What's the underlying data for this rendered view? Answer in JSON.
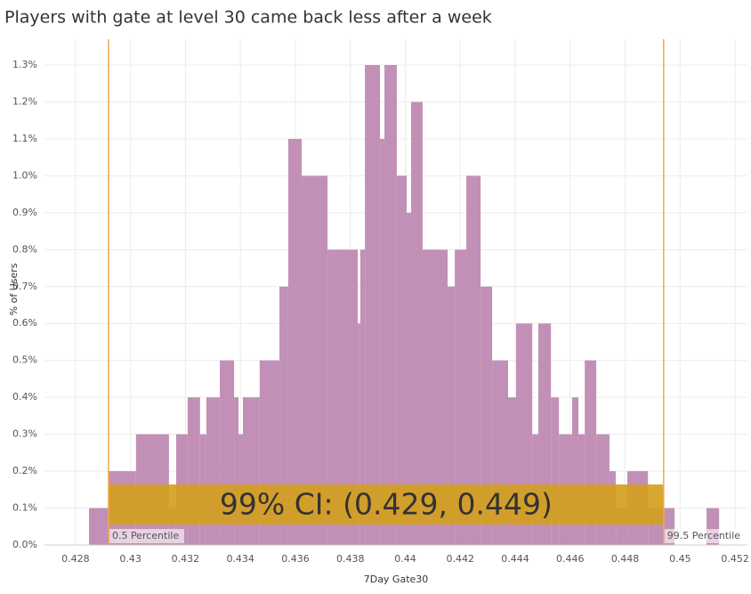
{
  "chart_data": {
    "type": "histogram",
    "title": "Players with gate at level 30 came back less after a week",
    "x_label": "7Day Gate30",
    "y_label": "% of Users",
    "color": "#c290b6",
    "bins": [
      0.42849,
      0.4292,
      0.4302,
      0.4314,
      0.43166,
      0.43208,
      0.43253,
      0.43276,
      0.43325,
      0.43377,
      0.43393,
      0.43409,
      0.4347,
      0.43542,
      0.43574,
      0.43623,
      0.43717,
      0.43827,
      0.43836,
      0.43853,
      0.43908,
      0.43924,
      0.43969,
      0.44005,
      0.44021,
      0.44063,
      0.44154,
      0.4418,
      0.44222,
      0.44274,
      0.44316,
      0.44374,
      0.44403,
      0.44462,
      0.44484,
      0.4453,
      0.44559,
      0.44607,
      0.4463,
      0.44653,
      0.44695,
      0.44743,
      0.44766,
      0.44808,
      0.44883,
      0.44944,
      0.4498,
      0.45096,
      0.45142
    ],
    "values": [
      0.1,
      0.2,
      0.3,
      0.1,
      0.3,
      0.4,
      0.3,
      0.4,
      0.5,
      0.4,
      0.3,
      0.4,
      0.5,
      0.7,
      1.1,
      1.0,
      0.8,
      0.6,
      0.8,
      1.3,
      1.1,
      1.3,
      1.0,
      0.9,
      1.2,
      0.8,
      0.7,
      0.8,
      1.0,
      0.7,
      0.5,
      0.4,
      0.6,
      0.3,
      0.6,
      0.4,
      0.3,
      0.4,
      0.3,
      0.5,
      0.3,
      0.2,
      0.1,
      0.2,
      0.1,
      0.1,
      0,
      0.1
    ],
    "xlim": [
      0.42687,
      0.45245
    ],
    "xticks": [
      0.428,
      0.43,
      0.432,
      0.434,
      0.436,
      0.438,
      0.44,
      0.442,
      0.444,
      0.446,
      0.448,
      0.45,
      0.452
    ],
    "ylim": [
      0,
      1.37
    ],
    "yticks": [
      {
        "value": 0,
        "label": "0.0%"
      },
      {
        "value": 0.1,
        "label": "0.1%"
      },
      {
        "value": 0.2,
        "label": "0.2%"
      },
      {
        "value": 0.3,
        "label": "0.3%"
      },
      {
        "value": 0.4,
        "label": "0.4%"
      },
      {
        "value": 0.5,
        "label": "0.5%"
      },
      {
        "value": 0.6,
        "label": "0.6%"
      },
      {
        "value": 0.7,
        "label": "0.7%"
      },
      {
        "value": 0.8,
        "label": "0.8%"
      },
      {
        "value": 0.9,
        "label": "0.9%"
      },
      {
        "value": 1.0,
        "label": "1.0%"
      },
      {
        "value": 1.1,
        "label": "1.1%"
      },
      {
        "value": 1.2,
        "label": "1.2%"
      },
      {
        "value": 1.3,
        "label": "1.3%"
      }
    ],
    "grid": true,
    "reference_lines": [
      {
        "value": 0.4292,
        "label": "0.5 Percentile",
        "color": "#f5a54a"
      },
      {
        "value": 0.4494,
        "label": "99.5 Percentile",
        "color": "#f5a54a"
      }
    ],
    "band": {
      "label": "99% CI: (0.429, 0.449)",
      "color": "#d4a020"
    }
  }
}
